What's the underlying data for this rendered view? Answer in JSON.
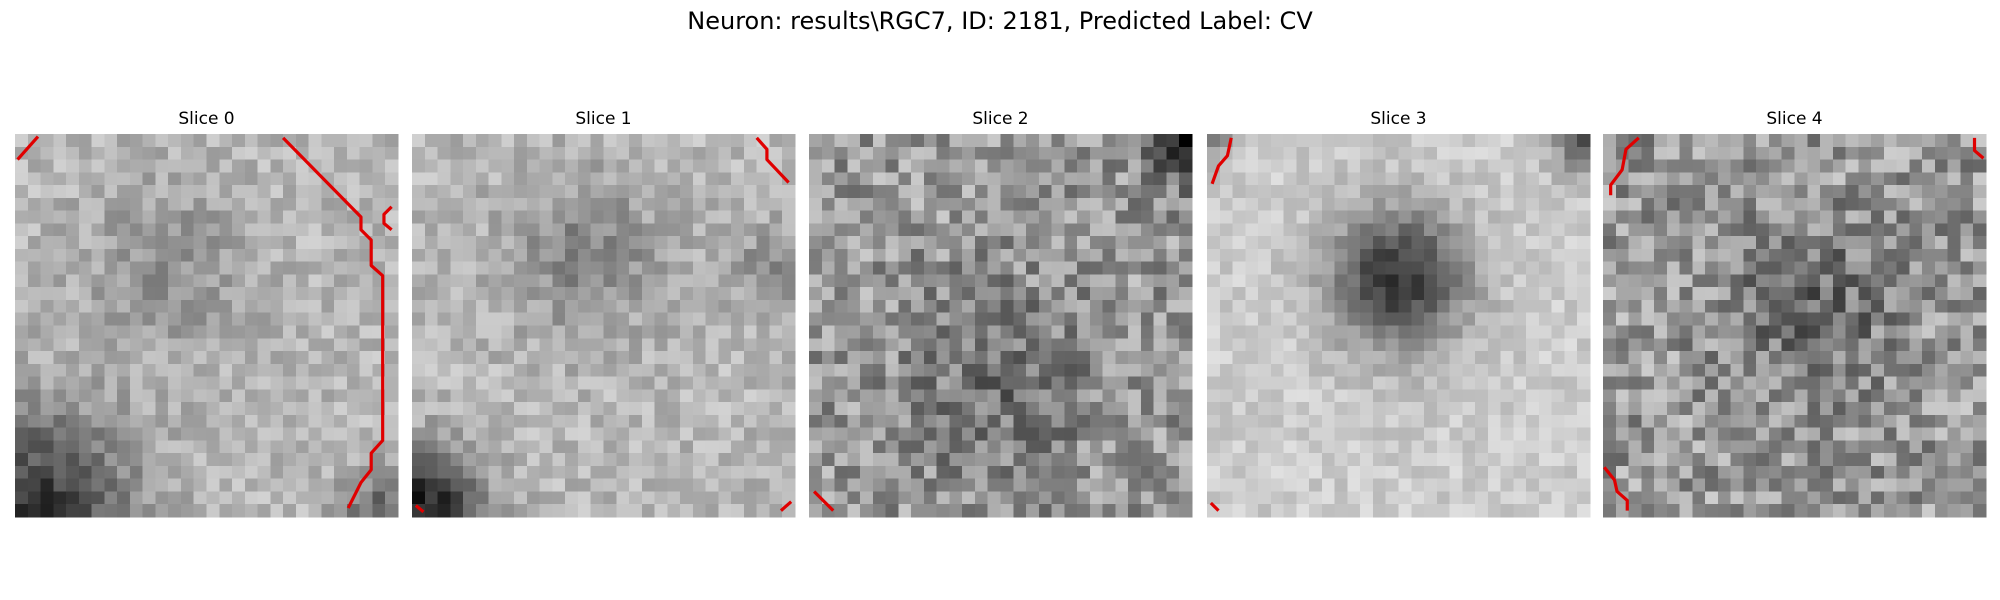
{
  "title": "Neuron: results\\RGC7, ID: 2181, Predicted Label: CV",
  "panels": [
    {
      "title": "Slice 0"
    },
    {
      "title": "Slice 1"
    },
    {
      "title": "Slice 2"
    },
    {
      "title": "Slice 3"
    },
    {
      "title": "Slice 4"
    }
  ]
}
